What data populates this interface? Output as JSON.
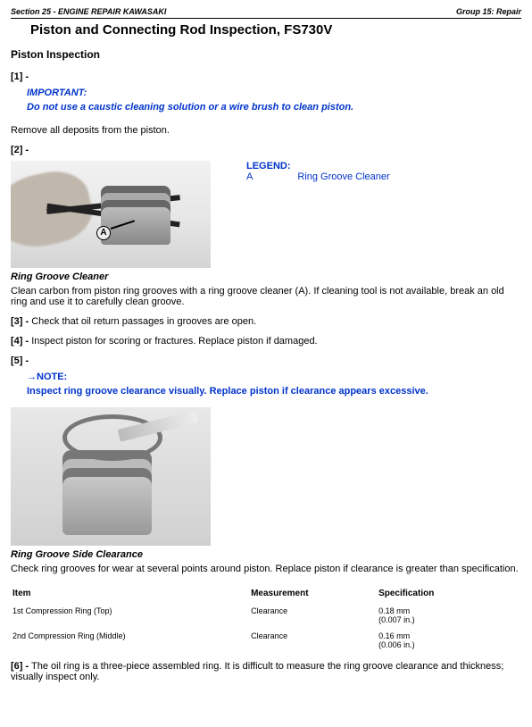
{
  "header": {
    "left": "Section 25 - ENGINE REPAIR KAWASAKI",
    "right": "Group 15: Repair"
  },
  "title": "Piston and Connecting Rod Inspection, FS730V",
  "subtitle": "Piston Inspection",
  "step1": {
    "num": "[1] -",
    "important_label": "IMPORTANT:",
    "important_text": "Do not use a caustic cleaning solution or a wire brush to clean piston."
  },
  "body1": "Remove all deposits from the piston.",
  "step2": {
    "num": "[2] -",
    "legend_title": "LEGEND:",
    "legend_key": "A",
    "legend_val": "Ring Groove Cleaner",
    "label_a": "A",
    "caption": "Ring Groove Cleaner",
    "caption_text": "Clean carbon from piston ring grooves with a ring groove cleaner (A). If cleaning tool is not available, break an old ring and use it to carefully clean groove."
  },
  "step3": "[3] - Check that oil return passages in grooves are open.",
  "step4": "[4] - Inspect piston for scoring or fractures. Replace piston if damaged.",
  "step5": {
    "num": "[5] -",
    "note_label": "→NOTE:",
    "note_text": "Inspect ring groove clearance visually. Replace piston if clearance appears excessive."
  },
  "figure2": {
    "caption": "Ring Groove Side Clearance",
    "caption_text": "Check ring grooves for wear at several points around piston. Replace piston if clearance is greater than specification."
  },
  "table": {
    "h1": "Item",
    "h2": "Measurement",
    "h3": "Specification",
    "r1c1": "1st Compression Ring (Top)",
    "r1c2": "Clearance",
    "r1c3a": "0.18 mm",
    "r1c3b": "(0.007 in.)",
    "r2c1": "2nd Compression Ring (Middle)",
    "r2c2": "Clearance",
    "r2c3a": "0.16 mm",
    "r2c3b": "(0.006 in.)"
  },
  "step6": "[6] - The oil ring is a three-piece assembled ring. It is difficult to measure the ring groove clearance and thickness; visually inspect only."
}
